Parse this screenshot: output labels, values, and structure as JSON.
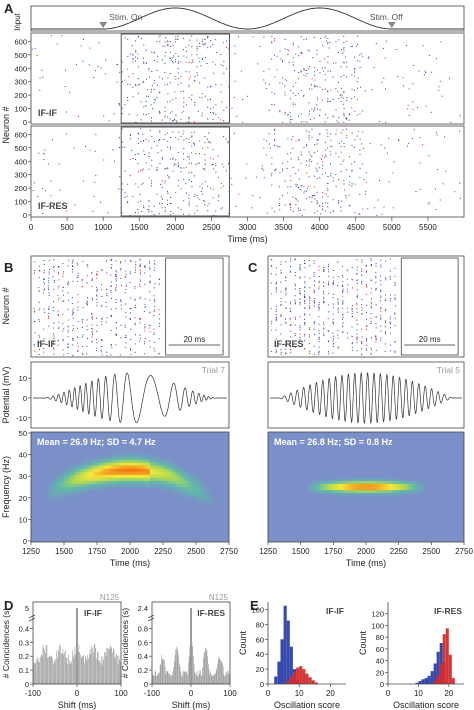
{
  "chart_data": [
    {
      "panel": "A",
      "type": "scatter",
      "title": "",
      "xlabel": "Time (ms)",
      "ylabel": "Neuron #",
      "input_label": "Input",
      "annotations": [
        "Stim. On",
        "Stim. Off"
      ],
      "stim_on": 1000,
      "stim_off": 5000,
      "xlim": [
        0,
        6000
      ],
      "ylim": [
        0,
        640
      ],
      "xticks": [
        0,
        500,
        1000,
        1500,
        2000,
        2500,
        3000,
        3500,
        4000,
        4500,
        5000,
        5500
      ],
      "yticks": [
        0,
        100,
        200,
        300,
        400,
        500,
        600
      ],
      "highlight_window": [
        1250,
        2750
      ],
      "series": [
        {
          "name": "IF-IF"
        },
        {
          "name": "IF-RES"
        }
      ]
    },
    {
      "panel": "B",
      "type": "scatter",
      "ylabel": "Neuron #",
      "series": [
        {
          "name": "IF-IF"
        }
      ],
      "inset_label": "20 ms"
    },
    {
      "panel": "B",
      "type": "line",
      "ylabel": "Potential (mV)",
      "trial": "Trial 7",
      "yticks": [
        -10,
        0,
        10
      ],
      "ylim": [
        -15,
        15
      ]
    },
    {
      "panel": "B",
      "type": "heatmap",
      "xlabel": "Time (ms)",
      "ylabel": "Frequency (Hz)",
      "annotation": "Mean = 26.9 Hz; SD = 4.7 Hz",
      "xlim": [
        1250,
        2750
      ],
      "ylim": [
        0,
        50
      ],
      "xticks": [
        1250,
        1500,
        1750,
        2000,
        2250,
        2500,
        2750
      ],
      "yticks": [
        0,
        10,
        20,
        30,
        40,
        50
      ]
    },
    {
      "panel": "C",
      "type": "scatter",
      "series": [
        {
          "name": "IF-RES"
        }
      ],
      "inset_label": "20 ms"
    },
    {
      "panel": "C",
      "type": "line",
      "trial": "Trial 5",
      "ylim": [
        -15,
        15
      ]
    },
    {
      "panel": "C",
      "type": "heatmap",
      "xlabel": "Time (ms)",
      "annotation": "Mean = 26.8 Hz; SD = 0.8 Hz",
      "xlim": [
        1250,
        2750
      ],
      "ylim": [
        0,
        50
      ],
      "xticks": [
        1250,
        1500,
        1750,
        2000,
        2250,
        2500,
        2750
      ]
    },
    {
      "panel": "D",
      "type": "bar",
      "neuron": "N125",
      "series": [
        {
          "name": "IF-IF"
        }
      ],
      "xlabel": "Shift (ms)",
      "ylabel": "# Coincidences (s)",
      "xlim": [
        -100,
        100
      ],
      "xticks": [
        -100,
        0,
        100
      ],
      "ylim": [
        0,
        0.6
      ],
      "yticks": [
        0,
        0.1,
        0.2,
        0.3,
        0.4
      ],
      "ytick_break": "5"
    },
    {
      "panel": "D",
      "type": "bar",
      "neuron": "N125",
      "series": [
        {
          "name": "IF-RES"
        }
      ],
      "xlabel": "Shift (ms)",
      "ylabel": "# Coincidences (s)",
      "xlim": [
        -100,
        100
      ],
      "xticks": [
        -100,
        0,
        100
      ],
      "ylim": [
        0,
        2.4
      ],
      "yticks": [
        0,
        0.2,
        0.4,
        0.6,
        0.8
      ],
      "ytick_break": "2.4"
    },
    {
      "panel": "E",
      "type": "bar",
      "series": [
        {
          "name": "IF-IF"
        }
      ],
      "xlabel": "Oscillation score",
      "ylabel": "Count",
      "xlim": [
        0,
        25
      ],
      "xticks": [
        0,
        10,
        20
      ],
      "ylim": [
        0,
        110
      ],
      "yticks": [
        0,
        20,
        40,
        60,
        80,
        100
      ],
      "blue": {
        "x": [
          2,
          3,
          4,
          5,
          6,
          7,
          8,
          9
        ],
        "values": [
          10,
          30,
          60,
          105,
          85,
          50,
          20,
          5
        ]
      },
      "red": {
        "x": [
          6,
          7,
          8,
          9,
          10,
          11,
          12,
          13,
          14,
          15
        ],
        "values": [
          4,
          10,
          16,
          22,
          24,
          20,
          14,
          9,
          5,
          2
        ]
      }
    },
    {
      "panel": "E",
      "type": "bar",
      "series": [
        {
          "name": "IF-RES"
        }
      ],
      "xlabel": "Oscillation score",
      "ylabel": "Count",
      "xlim": [
        0,
        25
      ],
      "xticks": [
        0,
        10,
        20
      ],
      "ylim": [
        0,
        140
      ],
      "yticks": [
        0,
        20,
        40,
        60,
        80,
        100,
        120
      ],
      "blue": {
        "x": [
          9,
          10,
          11,
          12,
          13,
          14,
          15,
          16,
          17,
          18
        ],
        "values": [
          2,
          5,
          8,
          10,
          14,
          22,
          35,
          55,
          70,
          38
        ]
      },
      "red": {
        "x": [
          15,
          16,
          17,
          18,
          19,
          20,
          21
        ],
        "values": [
          6,
          15,
          35,
          85,
          95,
          50,
          10
        ]
      }
    }
  ],
  "panel_labels": [
    "A",
    "B",
    "C",
    "D",
    "E"
  ],
  "colors": {
    "excitatory": "#2b3fa8",
    "inhibitory": "#d42a2a",
    "bars": "#9b9b9b",
    "heat_bg": "#7b8fc8"
  }
}
